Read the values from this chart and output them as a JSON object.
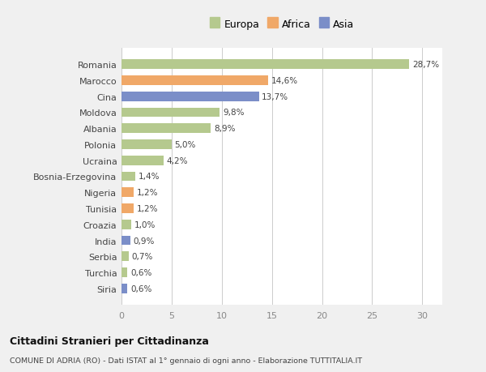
{
  "countries": [
    "Romania",
    "Marocco",
    "Cina",
    "Moldova",
    "Albania",
    "Polonia",
    "Ucraina",
    "Bosnia-Erzegovina",
    "Nigeria",
    "Tunisia",
    "Croazia",
    "India",
    "Serbia",
    "Turchia",
    "Siria"
  ],
  "values": [
    28.7,
    14.6,
    13.7,
    9.8,
    8.9,
    5.0,
    4.2,
    1.4,
    1.2,
    1.2,
    1.0,
    0.9,
    0.7,
    0.6,
    0.6
  ],
  "labels": [
    "28,7%",
    "14,6%",
    "13,7%",
    "9,8%",
    "8,9%",
    "5,0%",
    "4,2%",
    "1,4%",
    "1,2%",
    "1,2%",
    "1,0%",
    "0,9%",
    "0,7%",
    "0,6%",
    "0,6%"
  ],
  "continents": [
    "Europa",
    "Africa",
    "Asia",
    "Europa",
    "Europa",
    "Europa",
    "Europa",
    "Europa",
    "Africa",
    "Africa",
    "Europa",
    "Asia",
    "Europa",
    "Europa",
    "Asia"
  ],
  "colors": {
    "Europa": "#b5c98e",
    "Africa": "#f0a868",
    "Asia": "#7b8ec8"
  },
  "xlim": [
    0,
    32
  ],
  "xticks": [
    0,
    5,
    10,
    15,
    20,
    25,
    30
  ],
  "fig_bg": "#f0f0f0",
  "plot_bg": "#ffffff",
  "title": "Cittadini Stranieri per Cittadinanza",
  "subtitle": "COMUNE DI ADRIA (RO) - Dati ISTAT al 1° gennaio di ogni anno - Elaborazione TUTTITALIA.IT",
  "bar_height": 0.6
}
